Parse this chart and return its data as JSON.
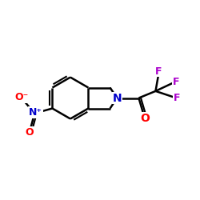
{
  "bg_color": "#ffffff",
  "bond_color": "#000000",
  "bond_width": 1.8,
  "atom_colors": {
    "N": "#0000cc",
    "O": "#ff0000",
    "F": "#aa00cc",
    "N_nitro": "#0000cc"
  },
  "font_size_atom": 10,
  "font_size_small": 9
}
